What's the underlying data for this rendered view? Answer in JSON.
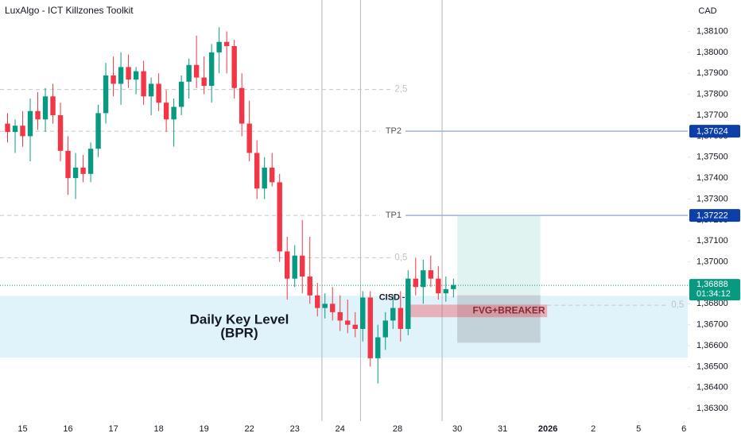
{
  "chart_data": {
    "type": "candlestick",
    "title": "LuxAlgo - ICT Killzones Toolkit",
    "currency": "CAD",
    "up_color": "#089981",
    "down_color": "#f23645",
    "categories": [
      null,
      null,
      null,
      null,
      null,
      null,
      null,
      null,
      null,
      null,
      null,
      null,
      null,
      null,
      null,
      null,
      null,
      null,
      null,
      null,
      null,
      null,
      null,
      null,
      null,
      null,
      null,
      null,
      null,
      null,
      null,
      null,
      null,
      null,
      null,
      null,
      null,
      null,
      null,
      null,
      null,
      null,
      null,
      null,
      null,
      null,
      null,
      null,
      null,
      null,
      null,
      null,
      null,
      null,
      null,
      null,
      null,
      null,
      null,
      null
    ],
    "open": [
      1.3766,
      1.3762,
      1.3765,
      1.376,
      1.3772,
      1.3768,
      1.3779,
      1.377,
      1.3753,
      1.374,
      1.3745,
      1.3742,
      1.3754,
      1.3771,
      1.3789,
      1.3785,
      1.3793,
      1.3787,
      1.3791,
      1.3779,
      1.3785,
      1.3776,
      1.3768,
      1.3774,
      1.3786,
      1.3794,
      1.3788,
      1.3784,
      1.38,
      1.3805,
      1.3803,
      1.3783,
      1.3766,
      1.3752,
      1.3735,
      1.3745,
      1.3738,
      1.3705,
      1.3692,
      1.3703,
      1.3693,
      1.3684,
      1.3678,
      1.368,
      1.3676,
      1.3672,
      1.367,
      1.3668,
      1.3683,
      1.3654,
      1.3664,
      1.3672,
      1.3678,
      1.3668,
      1.3692,
      1.3688,
      1.3696,
      1.3692,
      1.3685,
      1.3687
    ],
    "high": [
      1.3771,
      1.3768,
      1.3772,
      1.3778,
      1.3781,
      1.3783,
      1.3785,
      1.3776,
      1.376,
      1.3752,
      1.3751,
      1.3757,
      1.3775,
      1.3795,
      1.3798,
      1.38,
      1.3799,
      1.3793,
      1.3796,
      1.3788,
      1.379,
      1.3782,
      1.3778,
      1.3789,
      1.3797,
      1.3808,
      1.3798,
      1.3804,
      1.3812,
      1.381,
      1.3806,
      1.379,
      1.3777,
      1.3758,
      1.375,
      1.3752,
      1.3742,
      1.3712,
      1.3708,
      1.372,
      1.3712,
      1.369,
      1.3685,
      1.3688,
      1.3684,
      1.3682,
      1.3676,
      1.3686,
      1.3686,
      1.367,
      1.3676,
      1.3684,
      1.3686,
      1.3696,
      1.3702,
      1.3701,
      1.3703,
      1.3698,
      1.3693,
      1.3692
    ],
    "low": [
      1.3757,
      1.3752,
      1.3755,
      1.3748,
      1.3763,
      1.3762,
      1.3766,
      1.3748,
      1.3732,
      1.373,
      1.3738,
      1.3738,
      1.375,
      1.3766,
      1.3779,
      1.3775,
      1.3783,
      1.378,
      1.3775,
      1.377,
      1.3772,
      1.3762,
      1.3755,
      1.377,
      1.3778,
      1.3783,
      1.378,
      1.3776,
      1.379,
      1.379,
      1.3778,
      1.376,
      1.3748,
      1.373,
      1.373,
      1.3736,
      1.37,
      1.3682,
      1.3688,
      1.3685,
      1.368,
      1.3674,
      1.3673,
      1.3672,
      1.3667,
      1.3666,
      1.3664,
      1.3662,
      1.365,
      1.3642,
      1.3658,
      1.3668,
      1.3662,
      1.3665,
      1.3684,
      1.368,
      1.3688,
      1.3682,
      1.3681,
      1.3683
    ],
    "close": [
      1.3762,
      1.3765,
      1.376,
      1.3772,
      1.3768,
      1.3779,
      1.377,
      1.3753,
      1.374,
      1.3745,
      1.3742,
      1.3754,
      1.3771,
      1.3789,
      1.3785,
      1.3793,
      1.3787,
      1.3791,
      1.3779,
      1.3785,
      1.3776,
      1.3768,
      1.3774,
      1.3786,
      1.3794,
      1.3788,
      1.3784,
      1.38,
      1.3805,
      1.3803,
      1.3783,
      1.3766,
      1.3752,
      1.3735,
      1.3745,
      1.3738,
      1.3705,
      1.3692,
      1.3703,
      1.3693,
      1.3684,
      1.3678,
      1.368,
      1.3676,
      1.3672,
      1.367,
      1.3668,
      1.3683,
      1.3654,
      1.3664,
      1.3672,
      1.3678,
      1.3668,
      1.3692,
      1.3688,
      1.3696,
      1.3692,
      1.3685,
      1.3687,
      1.3689
    ],
    "xlim": [
      -1,
      90
    ],
    "xticks": [
      {
        "value": 2,
        "label": "15"
      },
      {
        "value": 8,
        "label": "16"
      },
      {
        "value": 14,
        "label": "17"
      },
      {
        "value": 20,
        "label": "18"
      },
      {
        "value": 26,
        "label": "19"
      },
      {
        "value": 32,
        "label": "22"
      },
      {
        "value": 38,
        "label": "23"
      },
      {
        "value": 44,
        "label": "24"
      },
      {
        "value": 51.6,
        "label": "28"
      },
      {
        "value": 59.5,
        "label": "30"
      },
      {
        "value": 65.5,
        "label": "31"
      },
      {
        "value": 71.5,
        "label": "2026"
      },
      {
        "value": 77.5,
        "label": "2"
      },
      {
        "value": 83.5,
        "label": "5"
      },
      {
        "value": 89.5,
        "label": "6"
      }
    ],
    "ylim": [
      1.3624,
      1.3825
    ],
    "yticks": [
      {
        "value": 1.363,
        "label": "1,36300"
      },
      {
        "value": 1.364,
        "label": "1,36400"
      },
      {
        "value": 1.365,
        "label": "1,36500"
      },
      {
        "value": 1.366,
        "label": "1,36600"
      },
      {
        "value": 1.367,
        "label": "1,36700"
      },
      {
        "value": 1.368,
        "label": "1,36800"
      },
      {
        "value": 1.369,
        "label": "1,36900"
      },
      {
        "value": 1.37,
        "label": "1,37000"
      },
      {
        "value": 1.371,
        "label": "1,37100"
      },
      {
        "value": 1.372,
        "label": "1,37200"
      },
      {
        "value": 1.373,
        "label": "1,37300"
      },
      {
        "value": 1.374,
        "label": "1,37400"
      },
      {
        "value": 1.375,
        "label": "1,37500"
      },
      {
        "value": 1.376,
        "label": "1,37600"
      },
      {
        "value": 1.377,
        "label": "1,37700"
      },
      {
        "value": 1.378,
        "label": "1,37800"
      },
      {
        "value": 1.379,
        "label": "1,37900"
      },
      {
        "value": 1.38,
        "label": "1,38000"
      },
      {
        "value": 1.381,
        "label": "1,38100"
      }
    ],
    "current": {
      "value": 1.36888,
      "label": "1,36888",
      "countdown": "01:34:12"
    },
    "levels": [
      {
        "name": "TP2",
        "value": 1.37624,
        "value_label": "1,37624"
      },
      {
        "name": "TP1",
        "value": 1.37222,
        "value_label": "1,37222"
      }
    ],
    "fib_levels": [
      {
        "label": "2,5",
        "value": 1.37823,
        "xlim": [
          -1,
          50.8
        ]
      },
      {
        "label": "0,5",
        "value": 1.3702,
        "xlim": [
          -1,
          50.8
        ]
      },
      {
        "label": "0,5",
        "value": 1.36793,
        "xlim": [
          71.4,
          87.4
        ]
      }
    ],
    "cisd": {
      "label": "CISD",
      "value": 1.3683
    },
    "session_lines": [
      41.6,
      46.7,
      57.5
    ],
    "key_level": {
      "label": "Daily Key Level",
      "sublabel": "(BPR)",
      "ylim": [
        1.36543,
        1.36838
      ]
    },
    "fvg": {
      "label": "FVG+BREAKER",
      "ylim": [
        1.36736,
        1.36796
      ],
      "xlim": [
        52.65,
        71.4
      ]
    },
    "position": {
      "xlim": [
        59.5,
        70.5
      ],
      "entry": 1.36842,
      "target": 1.37221,
      "stop": 1.36614
    }
  }
}
